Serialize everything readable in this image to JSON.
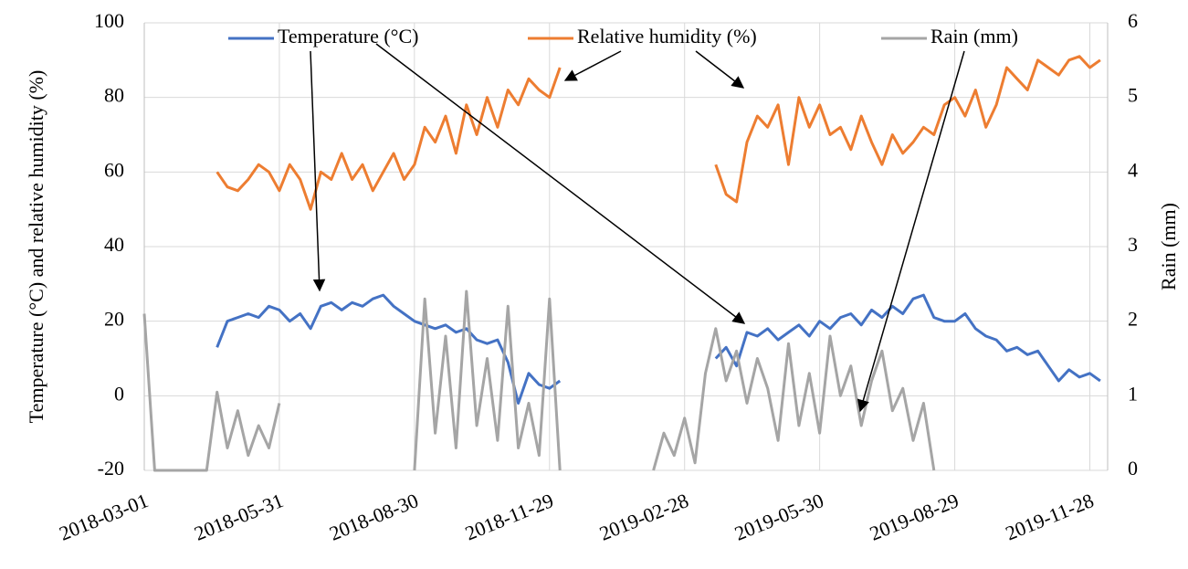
{
  "chart_data": {
    "type": "line",
    "y_label": "Temperature (°C) and relative humidity (%)",
    "y2_label": "Rain (mm)",
    "legend_position": "top",
    "grid": true,
    "x": [
      "2018-03-01",
      "2018-03-08",
      "2018-03-15",
      "2018-03-22",
      "2018-03-29",
      "2018-04-05",
      "2018-04-12",
      "2018-04-19",
      "2018-04-26",
      "2018-05-03",
      "2018-05-10",
      "2018-05-17",
      "2018-05-24",
      "2018-05-31",
      "2018-06-07",
      "2018-06-14",
      "2018-06-21",
      "2018-06-28",
      "2018-07-05",
      "2018-07-12",
      "2018-07-19",
      "2018-07-26",
      "2018-08-02",
      "2018-08-09",
      "2018-08-16",
      "2018-08-23",
      "2018-08-30",
      "2018-09-06",
      "2018-09-13",
      "2018-09-20",
      "2018-09-27",
      "2018-10-04",
      "2018-10-11",
      "2018-10-18",
      "2018-10-25",
      "2018-11-01",
      "2018-11-08",
      "2018-11-15",
      "2018-11-22",
      "2018-11-29",
      "2018-12-06",
      "2018-12-13",
      "2018-12-20",
      "2018-12-27",
      "2019-01-03",
      "2019-01-10",
      "2019-01-17",
      "2019-01-24",
      "2019-01-31",
      "2019-02-07",
      "2019-02-14",
      "2019-02-21",
      "2019-02-28",
      "2019-03-07",
      "2019-03-14",
      "2019-03-21",
      "2019-03-28",
      "2019-04-04",
      "2019-04-11",
      "2019-04-18",
      "2019-04-25",
      "2019-05-02",
      "2019-05-09",
      "2019-05-16",
      "2019-05-23",
      "2019-05-30",
      "2019-06-06",
      "2019-06-13",
      "2019-06-20",
      "2019-06-27",
      "2019-07-04",
      "2019-07-11",
      "2019-07-18",
      "2019-07-25",
      "2019-08-01",
      "2019-08-08",
      "2019-08-15",
      "2019-08-22",
      "2019-08-29",
      "2019-09-05",
      "2019-09-12",
      "2019-09-19",
      "2019-09-26",
      "2019-10-03",
      "2019-10-10",
      "2019-10-17",
      "2019-10-24",
      "2019-10-31",
      "2019-11-07",
      "2019-11-14",
      "2019-11-21",
      "2019-11-28",
      "2019-12-05"
    ],
    "xlim": [
      "2018-03-01",
      "2019-12-10"
    ],
    "xticks": [
      "2018-03-01",
      "2018-05-31",
      "2018-08-30",
      "2018-11-29",
      "2019-02-28",
      "2019-05-30",
      "2019-08-29",
      "2019-11-28"
    ],
    "ylim": [
      -20,
      100
    ],
    "yticks": [
      -20,
      0,
      20,
      40,
      60,
      80,
      100
    ],
    "y2lim": [
      0,
      6
    ],
    "y2ticks": [
      0,
      1,
      2,
      3,
      4,
      5,
      6
    ],
    "series": [
      {
        "name": "Temperature (°C)",
        "color": "#4472c4",
        "values": [
          null,
          null,
          null,
          null,
          null,
          null,
          null,
          13,
          20,
          21,
          22,
          21,
          24,
          23,
          20,
          22,
          18,
          24,
          25,
          23,
          25,
          24,
          26,
          27,
          24,
          22,
          20,
          19,
          18,
          19,
          17,
          18,
          15,
          14,
          15,
          9,
          -2,
          6,
          3,
          2,
          4,
          null,
          null,
          null,
          null,
          null,
          null,
          null,
          null,
          null,
          null,
          null,
          null,
          null,
          null,
          10,
          13,
          8,
          17,
          16,
          18,
          15,
          17,
          19,
          16,
          20,
          18,
          21,
          22,
          19,
          23,
          21,
          24,
          22,
          26,
          27,
          21,
          20,
          20,
          22,
          18,
          16,
          15,
          12,
          13,
          11,
          12,
          8,
          4,
          7,
          5,
          6,
          4
        ]
      },
      {
        "name": "Relative humidity (%)",
        "color": "#ed7d31",
        "values": [
          null,
          null,
          null,
          null,
          null,
          null,
          null,
          60,
          56,
          55,
          58,
          62,
          60,
          55,
          62,
          58,
          50,
          60,
          58,
          65,
          58,
          62,
          55,
          60,
          65,
          58,
          62,
          72,
          68,
          75,
          65,
          78,
          70,
          80,
          72,
          82,
          78,
          85,
          82,
          80,
          88,
          null,
          null,
          null,
          null,
          null,
          null,
          null,
          null,
          null,
          null,
          null,
          null,
          null,
          null,
          62,
          54,
          52,
          68,
          75,
          72,
          78,
          62,
          80,
          72,
          78,
          70,
          72,
          66,
          75,
          68,
          62,
          70,
          65,
          68,
          72,
          70,
          78,
          80,
          75,
          82,
          72,
          78,
          88,
          85,
          82,
          90,
          88,
          86,
          90,
          91,
          88,
          90
        ]
      },
      {
        "name": "Rain (mm)",
        "color": "#a5a5a5",
        "axis": "y2",
        "values": [
          2.1,
          0,
          0,
          0,
          0,
          0,
          0,
          1.05,
          0.3,
          0.8,
          0.2,
          0.6,
          0.3,
          0.9,
          null,
          null,
          null,
          null,
          null,
          null,
          null,
          null,
          null,
          null,
          null,
          null,
          0,
          2.3,
          0.5,
          1.8,
          0.3,
          2.4,
          0.6,
          1.5,
          0.4,
          2.2,
          0.3,
          0.9,
          0.2,
          2.3,
          0,
          null,
          null,
          null,
          null,
          null,
          null,
          null,
          null,
          0,
          0.5,
          0.2,
          0.7,
          0.1,
          1.3,
          1.9,
          1.2,
          1.6,
          0.9,
          1.5,
          1.1,
          0.4,
          1.7,
          0.6,
          1.3,
          0.5,
          1.8,
          1.0,
          1.4,
          0.6,
          1.2,
          1.6,
          0.8,
          1.1,
          0.4,
          0.9,
          0,
          null,
          null,
          null,
          null,
          null,
          null,
          null,
          null,
          null,
          null,
          null,
          null,
          null,
          null,
          null,
          null
        ]
      }
    ]
  }
}
